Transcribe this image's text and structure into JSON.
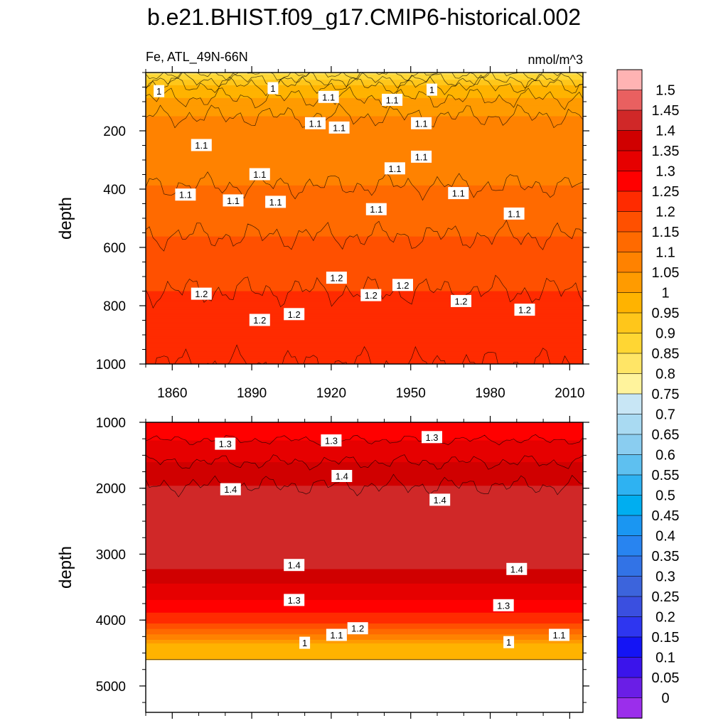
{
  "title": "b.e21.BHIST.f09_g17.CMIP6-historical.002",
  "chart_data": [
    {
      "type": "heatmap",
      "panel": "top",
      "subtitle_left": "Fe, ATL_49N-66N",
      "subtitle_right": "nmol/m^3",
      "ylabel": "depth",
      "xlim": [
        1850,
        2015
      ],
      "ylim": [
        1000,
        0
      ],
      "x_ticks": [
        "1860",
        "1890",
        "1920",
        "1950",
        "1980",
        "2010"
      ],
      "y_ticks": [
        "200",
        "400",
        "600",
        "800",
        "1000"
      ],
      "profile": [
        {
          "depth": 0,
          "value": 0.84
        },
        {
          "depth": 25,
          "value": 0.9
        },
        {
          "depth": 50,
          "value": 0.97
        },
        {
          "depth": 150,
          "value": 1.05
        },
        {
          "depth": 350,
          "value": 1.09
        },
        {
          "depth": 500,
          "value": 1.13
        },
        {
          "depth": 650,
          "value": 1.18
        },
        {
          "depth": 850,
          "value": 1.22
        },
        {
          "depth": 1000,
          "value": 1.25
        }
      ],
      "contour_labels": [
        {
          "text": "1",
          "x": 1855,
          "depth": 65
        },
        {
          "text": "1",
          "x": 1898,
          "depth": 55
        },
        {
          "text": "1.1",
          "x": 1919,
          "depth": 85
        },
        {
          "text": "1.1",
          "x": 1943,
          "depth": 95
        },
        {
          "text": "1",
          "x": 1958,
          "depth": 60
        },
        {
          "text": "1.1",
          "x": 1914,
          "depth": 175
        },
        {
          "text": "1.1",
          "x": 1923,
          "depth": 190
        },
        {
          "text": "1.1",
          "x": 1954,
          "depth": 175
        },
        {
          "text": "1.1",
          "x": 1871,
          "depth": 250
        },
        {
          "text": "1.1",
          "x": 1954,
          "depth": 290
        },
        {
          "text": "1.1",
          "x": 1893,
          "depth": 350
        },
        {
          "text": "1.1",
          "x": 1944,
          "depth": 330
        },
        {
          "text": "1.1",
          "x": 1865,
          "depth": 420
        },
        {
          "text": "1.1",
          "x": 1883,
          "depth": 440
        },
        {
          "text": "1.1",
          "x": 1899,
          "depth": 445
        },
        {
          "text": "1.1",
          "x": 1937,
          "depth": 470
        },
        {
          "text": "1.1",
          "x": 1968,
          "depth": 415
        },
        {
          "text": "1.1",
          "x": 1989,
          "depth": 485
        },
        {
          "text": "1.2",
          "x": 1922,
          "depth": 705
        },
        {
          "text": "1.2",
          "x": 1947,
          "depth": 730
        },
        {
          "text": "1.2",
          "x": 1871,
          "depth": 760
        },
        {
          "text": "1.2",
          "x": 1935,
          "depth": 765
        },
        {
          "text": "1.2",
          "x": 1969,
          "depth": 785
        },
        {
          "text": "1.2",
          "x": 1893,
          "depth": 850
        },
        {
          "text": "1.2",
          "x": 1906,
          "depth": 830
        },
        {
          "text": "1.2",
          "x": 1993,
          "depth": 815
        }
      ]
    },
    {
      "type": "heatmap",
      "panel": "bottom",
      "ylabel": "depth",
      "xlim": [
        1850,
        2015
      ],
      "ylim": [
        5400,
        1000
      ],
      "y_ticks": [
        "1000",
        "2000",
        "3000",
        "4000",
        "5000"
      ],
      "data_bottom_depth": 4600,
      "profile": [
        {
          "depth": 1000,
          "value": 1.26
        },
        {
          "depth": 1400,
          "value": 1.32
        },
        {
          "depth": 1800,
          "value": 1.38
        },
        {
          "depth": 2200,
          "value": 1.43
        },
        {
          "depth": 3100,
          "value": 1.43
        },
        {
          "depth": 3400,
          "value": 1.36
        },
        {
          "depth": 3800,
          "value": 1.28
        },
        {
          "depth": 4100,
          "value": 1.18
        },
        {
          "depth": 4250,
          "value": 1.08
        },
        {
          "depth": 4400,
          "value": 0.97
        },
        {
          "depth": 4600,
          "value": 0.96
        }
      ],
      "contour_labels": [
        {
          "text": "1.3",
          "x": 1880,
          "depth": 1330
        },
        {
          "text": "1.3",
          "x": 1920,
          "depth": 1280
        },
        {
          "text": "1.3",
          "x": 1958,
          "depth": 1230
        },
        {
          "text": "1.4",
          "x": 1924,
          "depth": 1820
        },
        {
          "text": "1.4",
          "x": 1882,
          "depth": 2020
        },
        {
          "text": "1.4",
          "x": 1961,
          "depth": 2180
        },
        {
          "text": "1.4",
          "x": 1906,
          "depth": 3170
        },
        {
          "text": "1.4",
          "x": 1990,
          "depth": 3230
        },
        {
          "text": "1.3",
          "x": 1906,
          "depth": 3700
        },
        {
          "text": "1.3",
          "x": 1985,
          "depth": 3780
        },
        {
          "text": "1.2",
          "x": 1930,
          "depth": 4130
        },
        {
          "text": "1.1",
          "x": 1922,
          "depth": 4230
        },
        {
          "text": "1.1",
          "x": 2006,
          "depth": 4230
        },
        {
          "text": "1",
          "x": 1910,
          "depth": 4350
        },
        {
          "text": "1",
          "x": 1987,
          "depth": 4340
        }
      ]
    }
  ],
  "colorbar": {
    "labels": [
      "1.5",
      "1.45",
      "1.4",
      "1.35",
      "1.3",
      "1.25",
      "1.2",
      "1.15",
      "1.1",
      "1.05",
      "1",
      "0.95",
      "0.9",
      "0.85",
      "0.8",
      "0.75",
      "0.7",
      "0.65",
      "0.6",
      "0.55",
      "0.5",
      "0.45",
      "0.4",
      "0.35",
      "0.3",
      "0.25",
      "0.2",
      "0.15",
      "0.1",
      "0.05",
      "0"
    ],
    "colors": [
      "#ffb3b3",
      "#e96060",
      "#d02828",
      "#d00000",
      "#e60000",
      "#ff0000",
      "#ff2b00",
      "#ff5000",
      "#ff6a00",
      "#ff8200",
      "#ff9b00",
      "#ffb300",
      "#ffc61a",
      "#ffd633",
      "#ffe566",
      "#fff39c",
      "#c8e6f5",
      "#a9daf2",
      "#8acdf0",
      "#5ec0f0",
      "#2eb2f2",
      "#00aef0",
      "#1a96f2",
      "#2884f0",
      "#3273e6",
      "#3c64dc",
      "#3a4fe0",
      "#2e36f0",
      "#1414f5",
      "#3b14eb",
      "#6a1ee6",
      "#9b2eeb"
    ],
    "bounds": [
      1.5,
      1.45,
      1.4,
      1.35,
      1.3,
      1.25,
      1.2,
      1.15,
      1.1,
      1.05,
      1.0,
      0.95,
      0.9,
      0.85,
      0.8,
      0.75,
      0.7,
      0.65,
      0.6,
      0.55,
      0.5,
      0.45,
      0.4,
      0.35,
      0.3,
      0.25,
      0.2,
      0.15,
      0.1,
      0.05,
      0.0
    ]
  }
}
